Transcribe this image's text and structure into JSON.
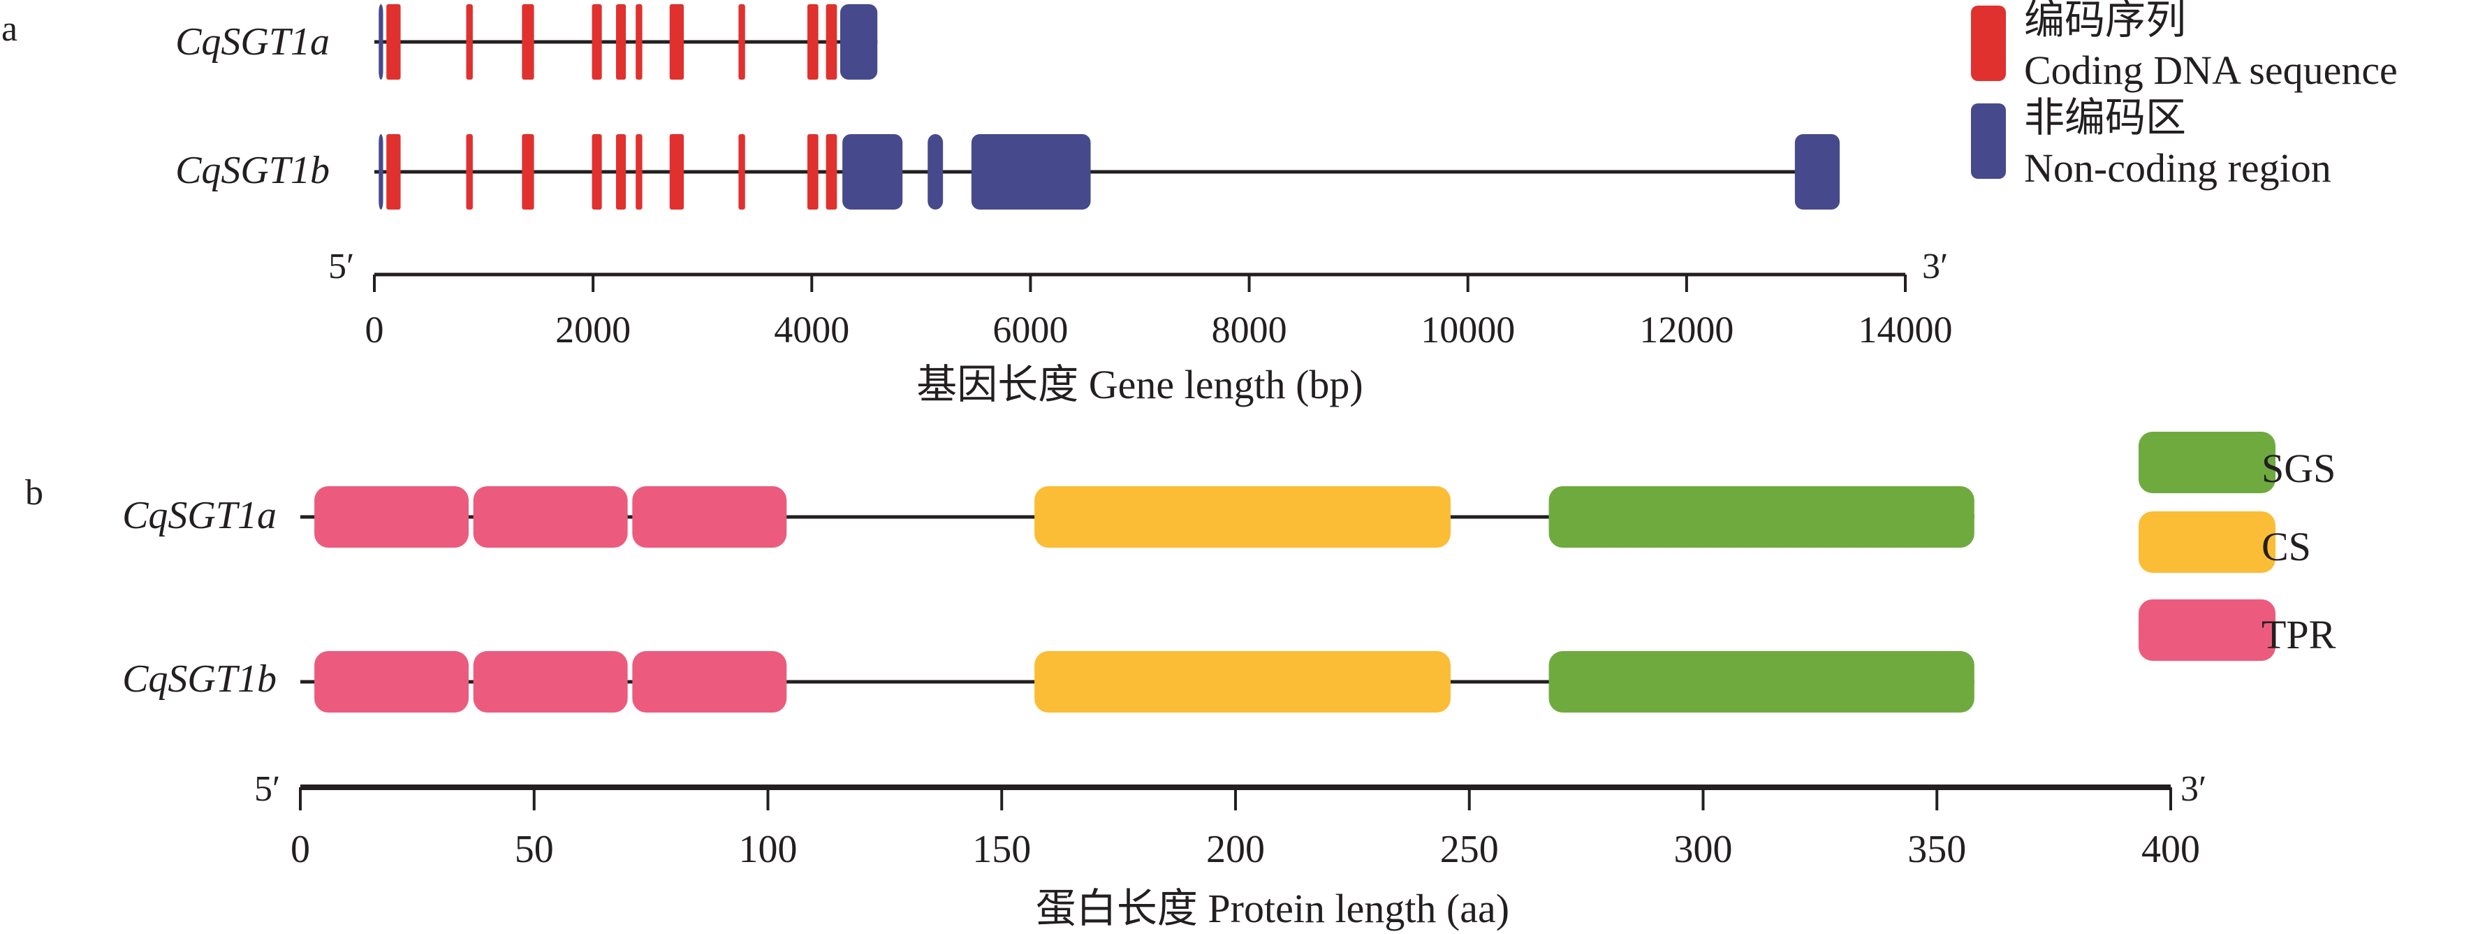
{
  "panel_a": {
    "label": "a",
    "x_axis": {
      "title": "基因长度 Gene length (bp)",
      "min": 0,
      "max": 14000,
      "step": 2000,
      "ticks": [
        "0",
        "2000",
        "4000",
        "6000",
        "8000",
        "10000",
        "12000",
        "14000"
      ],
      "left_end": "5′",
      "right_end": "3′"
    },
    "legend": [
      {
        "label_cn": "编码序列",
        "label_en": "Coding DNA sequence",
        "color": "#e0312e"
      },
      {
        "label_cn": "非编码区",
        "label_en": "Non-coding region",
        "color": "#464a8c"
      }
    ],
    "genes": [
      {
        "name": "CqSGT1a",
        "length": 4600,
        "noncoding": [
          [
            40,
            80
          ],
          [
            4260,
            4600
          ]
        ],
        "exons": [
          [
            110,
            240
          ],
          [
            840,
            900
          ],
          [
            1350,
            1460
          ],
          [
            1990,
            2080
          ],
          [
            2210,
            2300
          ],
          [
            2390,
            2450
          ],
          [
            2700,
            2830
          ],
          [
            3330,
            3390
          ],
          [
            3960,
            4060
          ],
          [
            4130,
            4230
          ]
        ]
      },
      {
        "name": "CqSGT1b",
        "length": 13400,
        "noncoding": [
          [
            40,
            80
          ],
          [
            4280,
            4830
          ],
          [
            5060,
            5200
          ],
          [
            5460,
            6550
          ],
          [
            12990,
            13400
          ]
        ],
        "exons": [
          [
            110,
            240
          ],
          [
            840,
            900
          ],
          [
            1350,
            1460
          ],
          [
            1990,
            2080
          ],
          [
            2210,
            2300
          ],
          [
            2390,
            2450
          ],
          [
            2700,
            2830
          ],
          [
            3330,
            3390
          ],
          [
            3960,
            4060
          ],
          [
            4130,
            4230
          ]
        ]
      }
    ]
  },
  "panel_b": {
    "label": "b",
    "x_axis": {
      "title": "蛋白长度 Protein length (aa)",
      "min": 0,
      "max": 400,
      "step": 50,
      "ticks": [
        "0",
        "50",
        "100",
        "150",
        "200",
        "250",
        "300",
        "350",
        "400"
      ],
      "left_end": "5′",
      "right_end": "3′"
    },
    "legend": [
      {
        "label": "SGS",
        "color": "#6faa3f"
      },
      {
        "label": "CS",
        "color": "#fbbd35"
      },
      {
        "label": "TPR",
        "color": "#ec5b7e"
      }
    ],
    "proteins": [
      {
        "name": "CqSGT1a",
        "length": 358,
        "domains": [
          {
            "type": "TPR",
            "start": 3,
            "end": 36
          },
          {
            "type": "TPR",
            "start": 37,
            "end": 70
          },
          {
            "type": "TPR",
            "start": 71,
            "end": 104
          },
          {
            "type": "CS",
            "start": 157,
            "end": 246
          },
          {
            "type": "SGS",
            "start": 267,
            "end": 358
          }
        ]
      },
      {
        "name": "CqSGT1b",
        "length": 358,
        "domains": [
          {
            "type": "TPR",
            "start": 3,
            "end": 36
          },
          {
            "type": "TPR",
            "start": 37,
            "end": 70
          },
          {
            "type": "TPR",
            "start": 71,
            "end": 104
          },
          {
            "type": "CS",
            "start": 157,
            "end": 246
          },
          {
            "type": "SGS",
            "start": 267,
            "end": 358
          }
        ]
      }
    ]
  }
}
